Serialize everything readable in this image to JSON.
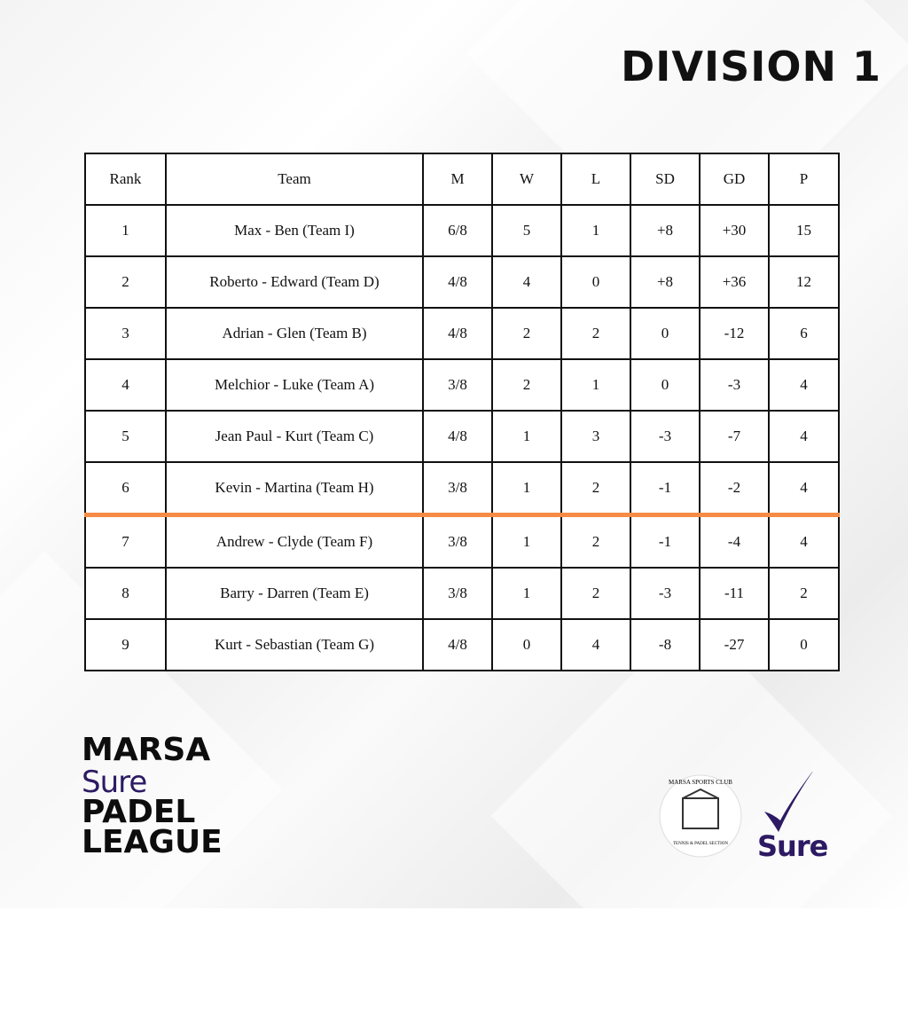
{
  "header": {
    "title": "DIVISION 1"
  },
  "table": {
    "columns": [
      "Rank",
      "Team",
      "M",
      "W",
      "L",
      "SD",
      "GD",
      "P"
    ],
    "rows": [
      [
        "1",
        "Max - Ben (Team I)",
        "6/8",
        "5",
        "1",
        "+8",
        "+30",
        "15"
      ],
      [
        "2",
        "Roberto - Edward (Team D)",
        "4/8",
        "4",
        "0",
        "+8",
        "+36",
        "12"
      ],
      [
        "3",
        "Adrian - Glen (Team B)",
        "4/8",
        "2",
        "2",
        "0",
        "-12",
        "6"
      ],
      [
        "4",
        "Melchior - Luke (Team A)",
        "3/8",
        "2",
        "1",
        "0",
        "-3",
        "4"
      ],
      [
        "5",
        "Jean Paul - Kurt (Team C)",
        "4/8",
        "1",
        "3",
        "-3",
        "-7",
        "4"
      ],
      [
        "6",
        "Kevin - Martina (Team H)",
        "3/8",
        "1",
        "2",
        "-1",
        "-2",
        "4"
      ],
      [
        "7",
        "Andrew - Clyde (Team F)",
        "3/8",
        "1",
        "2",
        "-1",
        "-4",
        "4"
      ],
      [
        "8",
        "Barry - Darren (Team E)",
        "3/8",
        "1",
        "2",
        "-3",
        "-11",
        "2"
      ],
      [
        "9",
        "Kurt - Sebastian (Team G)",
        "4/8",
        "0",
        "4",
        "-8",
        "-27",
        "0"
      ]
    ]
  },
  "league_logo": {
    "line1": "MARSA",
    "line2": "Sure",
    "line3": "PADEL",
    "line4": "LEAGUE"
  },
  "club_logo": {
    "name": "MARSA SPORTS CLUB",
    "section": "TENNIS & PADEL SECTION"
  },
  "sponsor_logo": {
    "name": "Sure"
  }
}
